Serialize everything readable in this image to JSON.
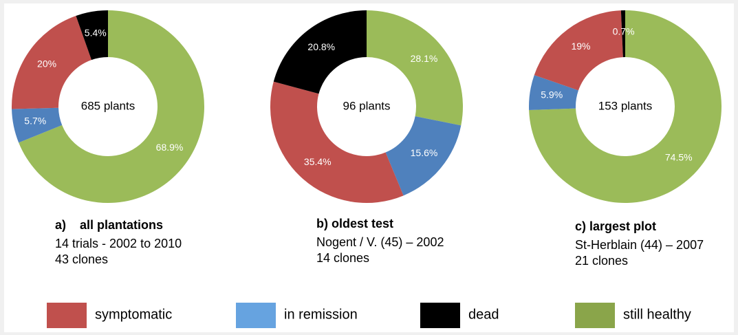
{
  "chart_data": [
    {
      "type": "donut",
      "title": "a)    all plantations",
      "subtitle": [
        "14 trials - 2002 to 2010",
        "43 clones"
      ],
      "center_label": "685 plants",
      "values": [
        68.9,
        5.7,
        20,
        5.4
      ],
      "value_labels": [
        "68.9%",
        "5.7%",
        "20%",
        "5.4%"
      ],
      "colors": [
        "#9bbb59",
        "#4f81bd",
        "#c0504d",
        "#000000"
      ]
    },
    {
      "type": "donut",
      "title": "b) oldest test",
      "subtitle": [
        "Nogent / V. (45) – 2002",
        "14 clones"
      ],
      "center_label": "96 plants",
      "values": [
        28.1,
        15.6,
        35.4,
        20.8
      ],
      "value_labels": [
        "28.1%",
        "15.6%",
        "35.4%",
        "20.8%"
      ],
      "colors": [
        "#9bbb59",
        "#4f81bd",
        "#c0504d",
        "#000000"
      ]
    },
    {
      "type": "donut",
      "title": "c) largest plot",
      "subtitle": [
        "St-Herblain (44) – 2007",
        "21 clones"
      ],
      "center_label": "153 plants",
      "values": [
        74.5,
        5.9,
        19,
        0.7
      ],
      "value_labels": [
        "74.5%",
        "5.9%",
        "19%",
        "0.7%"
      ],
      "colors": [
        "#9bbb59",
        "#4f81bd",
        "#c0504d",
        "#000000"
      ]
    }
  ],
  "legend": [
    {
      "name": "symptomatic",
      "color": "#c0504d"
    },
    {
      "name": "in remission",
      "color": "#66a3e0"
    },
    {
      "name": "dead",
      "color": "#000000"
    },
    {
      "name": "still healthy",
      "color": "#8aa54a"
    }
  ]
}
